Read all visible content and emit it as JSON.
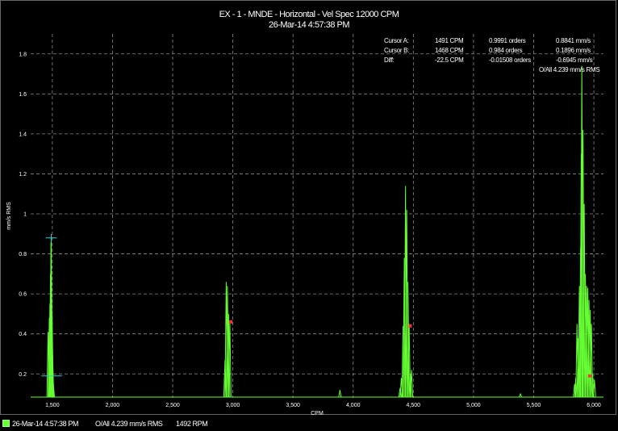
{
  "chart_data": {
    "type": "line",
    "title": "EX - 1 - MNDE - Horizontal - Vel Spec 12000 CPM",
    "subtitle": "26-Mar-14 4:57:38 PM",
    "xlabel": "CPM",
    "ylabel": "mm/s RMS",
    "xlim": [
      1320,
      6080
    ],
    "ylim": [
      0.08,
      1.9
    ],
    "xticks": [
      1500,
      2000,
      2500,
      3000,
      3500,
      4000,
      4500,
      5000,
      5500,
      6000
    ],
    "xtick_labels": [
      "1,500",
      "2,000",
      "2,500",
      "3,000",
      "3,500",
      "4,000",
      "4,500",
      "5,000",
      "5,500",
      "6,000"
    ],
    "yticks": [
      0.2,
      0.4,
      0.6,
      0.8,
      1,
      1.2,
      1.4,
      1.6,
      1.8
    ],
    "ytick_labels": [
      "0.2",
      "0.4",
      "0.6",
      "0.8",
      "1",
      "1.2",
      "1.4",
      "1.6",
      "1.8"
    ],
    "grid": true,
    "series": [
      {
        "name": "26-Mar-14 4:57:38 PM",
        "color": "#66ff33",
        "peaks": [
          [
            1465,
            0.41
          ],
          [
            1475,
            0.48
          ],
          [
            1480,
            0.55
          ],
          [
            1485,
            0.7
          ],
          [
            1489,
            0.86
          ],
          [
            1491,
            0.88
          ],
          [
            1494,
            0.62
          ],
          [
            1498,
            0.5
          ],
          [
            1502,
            0.3
          ],
          [
            1508,
            0.15
          ],
          [
            2935,
            0.27
          ],
          [
            2945,
            0.66
          ],
          [
            2955,
            0.64
          ],
          [
            2965,
            0.5
          ],
          [
            2975,
            0.46
          ],
          [
            3890,
            0.12
          ],
          [
            4390,
            0.13
          ],
          [
            4400,
            0.18
          ],
          [
            4415,
            0.44
          ],
          [
            4425,
            0.78
          ],
          [
            4435,
            1.14
          ],
          [
            4445,
            1.02
          ],
          [
            4455,
            0.66
          ],
          [
            4465,
            0.45
          ],
          [
            4475,
            0.2
          ],
          [
            4485,
            0.22
          ],
          [
            5390,
            0.1
          ],
          [
            5840,
            0.15
          ],
          [
            5850,
            0.18
          ],
          [
            5860,
            0.45
          ],
          [
            5870,
            0.38
          ],
          [
            5880,
            0.64
          ],
          [
            5890,
            0.83
          ],
          [
            5895,
            1.3
          ],
          [
            5900,
            1.74
          ],
          [
            5910,
            1.42
          ],
          [
            5920,
            1.05
          ],
          [
            5930,
            0.7
          ],
          [
            5940,
            0.64
          ],
          [
            5950,
            0.63
          ],
          [
            5960,
            0.57
          ],
          [
            5970,
            0.52
          ],
          [
            5980,
            0.45
          ],
          [
            5990,
            0.2
          ],
          [
            6005,
            0.17
          ]
        ]
      }
    ],
    "markers": [
      {
        "type": "cursor-cross",
        "x": 1491,
        "y": 0.88,
        "color": "#33cccc"
      },
      {
        "type": "harmonic",
        "x": 2983,
        "y": 0.46,
        "color": "#ff3333"
      },
      {
        "type": "harmonic",
        "x": 4474,
        "y": 0.44,
        "color": "#ff3333"
      },
      {
        "type": "harmonic",
        "x": 5965,
        "y": 0.19,
        "color": "#ff3333"
      }
    ],
    "cursor_readout": [
      {
        "label": "Cursor A:",
        "cpm": "1491 CPM",
        "orders": "0.9991 orders",
        "amp": "0.8841 mm/s"
      },
      {
        "label": "Cursor B:",
        "cpm": "1468 CPM",
        "orders": "0.984 orders",
        "amp": "0.1896 mm/s"
      },
      {
        "label": "Diff:",
        "cpm": "-22.5 CPM",
        "orders": "-0.01508 orders",
        "amp": "-0.6945 mm/s"
      }
    ],
    "overall": "O/All 4.239 mm/s RMS"
  },
  "status_bar": {
    "legend": "26-Mar-14 4:57:38 PM",
    "overall": "O/All 4.239 mm/s RMS",
    "speed": "1492 RPM"
  }
}
